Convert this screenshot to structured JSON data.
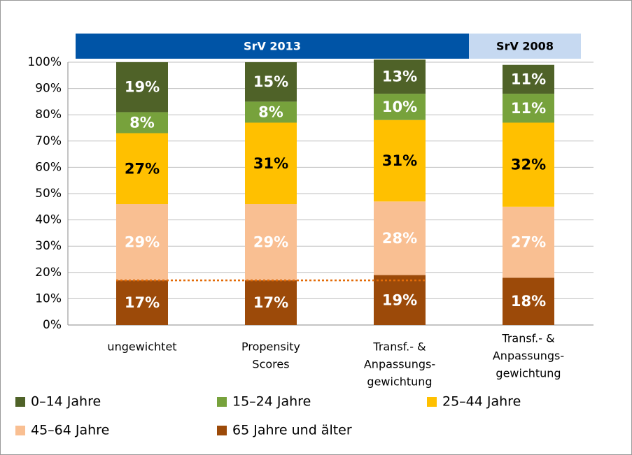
{
  "chart_data": {
    "type": "stacked_bar",
    "group_labels": [
      "SrV 2013",
      "SrV 2008"
    ],
    "categories": [
      [
        "ungewichtet"
      ],
      [
        "Propensity",
        "Scores"
      ],
      [
        "Transf.- &",
        "Anpassungs-",
        "gewichtung"
      ],
      [
        "Transf.- &",
        "Anpassungs-",
        "gewichtung"
      ]
    ],
    "series": [
      {
        "name": "0–14 Jahre",
        "color": "#4f6228",
        "values": [
          19,
          15,
          13,
          11
        ],
        "value_labels": [
          "19%",
          "15%",
          "13%",
          "11%"
        ],
        "label_color": "#ffffff"
      },
      {
        "name": "15–24 Jahre",
        "color": "#77a23c",
        "values": [
          8,
          8,
          10,
          11
        ],
        "value_labels": [
          "8%",
          "8%",
          "10%",
          "11%"
        ],
        "label_color": "#ffffff"
      },
      {
        "name": "25–44 Jahre",
        "color": "#ffc000",
        "values": [
          27,
          31,
          31,
          32
        ],
        "value_labels": [
          "27%",
          "31%",
          "31%",
          "32%"
        ],
        "label_color": "#000000"
      },
      {
        "name": "45–64 Jahre",
        "color": "#f9bf92",
        "values": [
          29,
          29,
          28,
          27
        ],
        "value_labels": [
          "29%",
          "29%",
          "28%",
          "27%"
        ],
        "label_color": "#ffffff"
      },
      {
        "name": "65 Jahre und älter",
        "color": "#9c4a09",
        "values": [
          17,
          17,
          19,
          18
        ],
        "value_labels": [
          "17%",
          "17%",
          "19%",
          "18%"
        ],
        "label_color": "#ffffff"
      }
    ],
    "reference_line": {
      "value": 17,
      "color": "#e36c09"
    },
    "ylim": [
      0,
      100
    ],
    "yticks": [
      {
        "value": 0,
        "label": "0%"
      },
      {
        "value": 10,
        "label": "10%"
      },
      {
        "value": 20,
        "label": "20%"
      },
      {
        "value": 30,
        "label": "30%"
      },
      {
        "value": 40,
        "label": "40%"
      },
      {
        "value": 50,
        "label": "50%"
      },
      {
        "value": 60,
        "label": "60%"
      },
      {
        "value": 70,
        "label": "70%"
      },
      {
        "value": 80,
        "label": "80%"
      },
      {
        "value": 90,
        "label": "90%"
      },
      {
        "value": 100,
        "label": "100%"
      }
    ],
    "grid": true
  }
}
